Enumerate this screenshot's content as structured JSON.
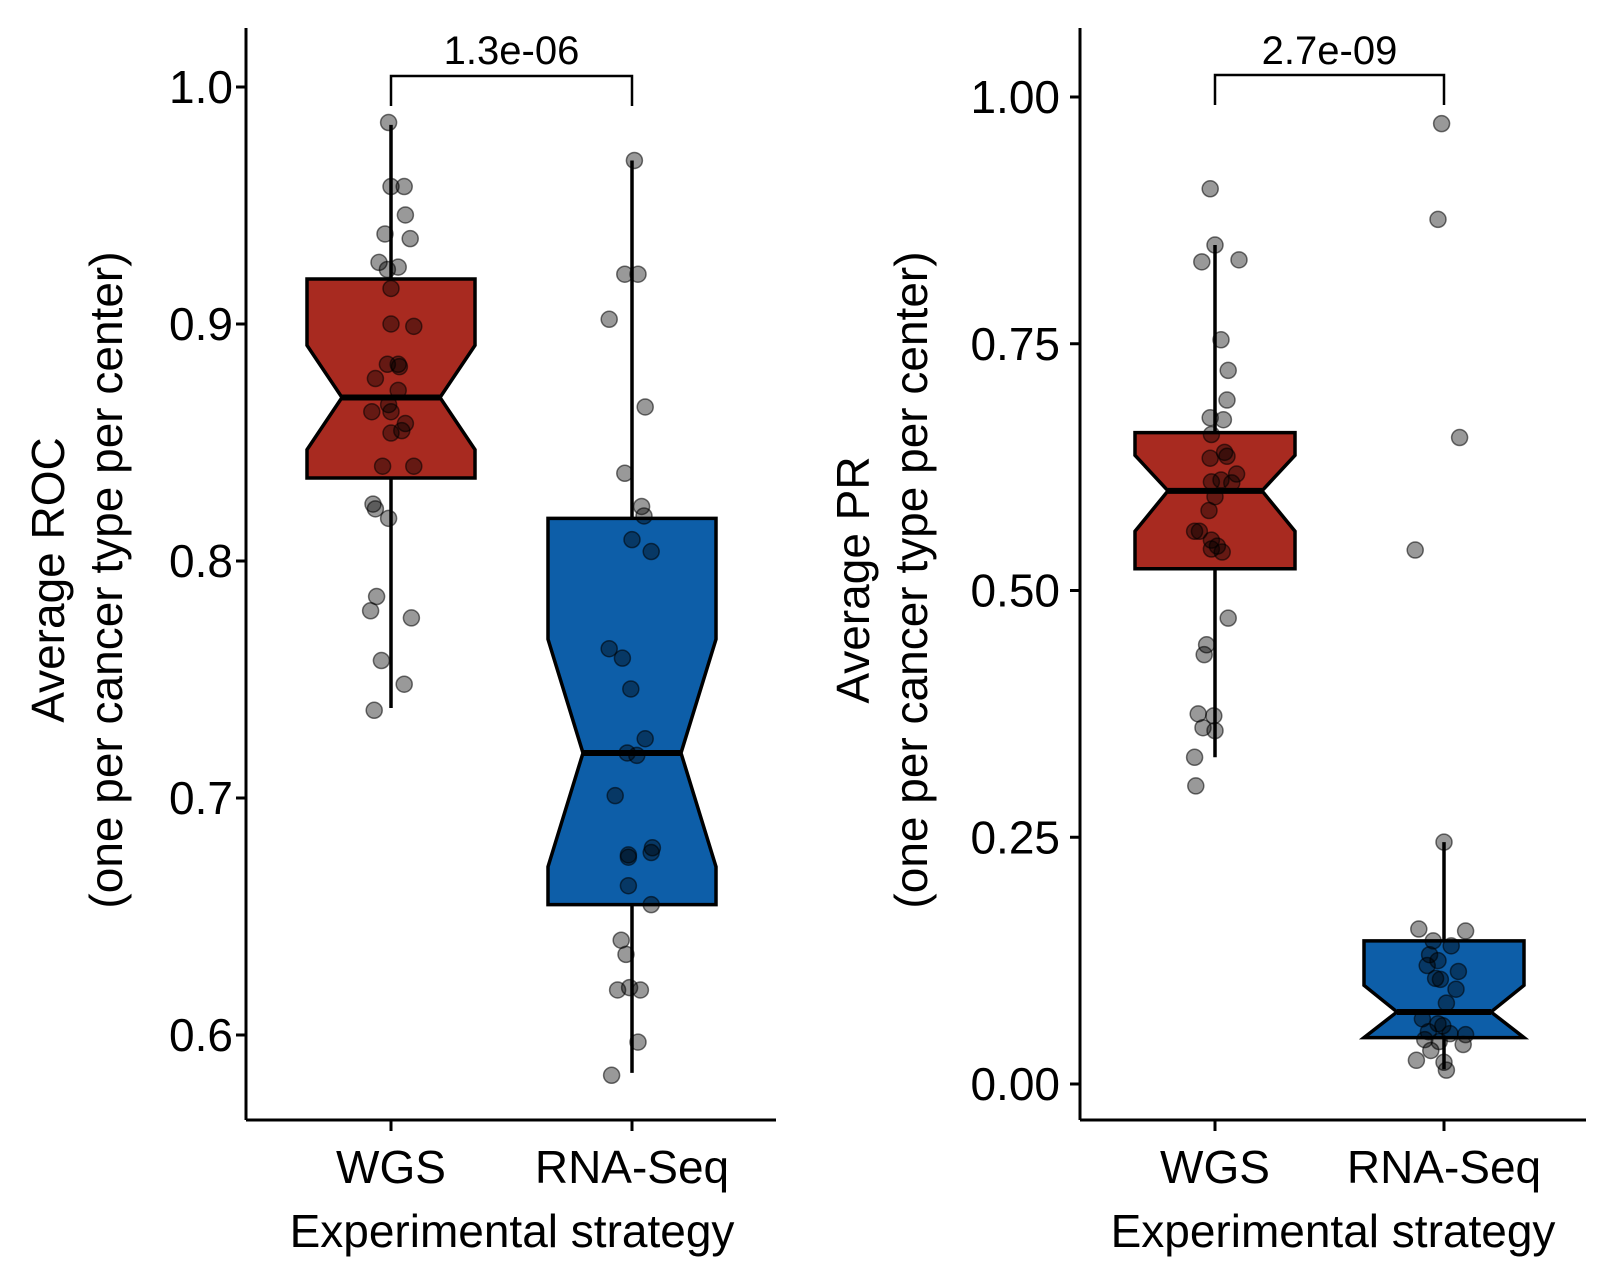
{
  "chart_data": [
    {
      "type": "boxplot",
      "xlabel": "Experimental strategy",
      "ylabel": "Average ROC",
      "ylabel2": "(one per cancer type per center)",
      "categories": [
        "WGS",
        "RNA-Seq"
      ],
      "yticks": [
        "0.6",
        "0.7",
        "0.8",
        "0.9",
        "1.0"
      ],
      "ytick_values": [
        0.6,
        0.7,
        0.8,
        0.9,
        1.0
      ],
      "ylim": [
        0.565,
        1.03
      ],
      "significance": "1.3e-06",
      "boxes": [
        {
          "category": "WGS",
          "color": "#a82a20",
          "q1": 0.835,
          "median": 0.869,
          "q3": 0.919,
          "whisker_low": 0.738,
          "whisker_high": 0.984,
          "notch_low": 0.847,
          "notch_high": 0.891
        },
        {
          "category": "RNA-Seq",
          "color": "#0d5ea8",
          "q1": 0.655,
          "median": 0.719,
          "q3": 0.818,
          "whisker_low": 0.584,
          "whisker_high": 0.969,
          "notch_low": 0.671,
          "notch_high": 0.767
        }
      ],
      "points": [
        [
          [
            -0.02,
            0.985
          ],
          [
            0.0,
            0.958
          ],
          [
            0.11,
            0.958
          ],
          [
            -0.05,
            0.938
          ],
          [
            0.12,
            0.946
          ],
          [
            0.16,
            0.936
          ],
          [
            -0.1,
            0.926
          ],
          [
            -0.03,
            0.923
          ],
          [
            0.06,
            0.924
          ],
          [
            0.0,
            0.915
          ],
          [
            0.0,
            0.9
          ],
          [
            0.19,
            0.899
          ],
          [
            -0.03,
            0.883
          ],
          [
            0.06,
            0.883
          ],
          [
            0.07,
            0.882
          ],
          [
            -0.13,
            0.877
          ],
          [
            0.06,
            0.872
          ],
          [
            -0.02,
            0.866
          ],
          [
            0.0,
            0.863
          ],
          [
            -0.16,
            0.863
          ],
          [
            0.12,
            0.858
          ],
          [
            0.09,
            0.855
          ],
          [
            0.0,
            0.854
          ],
          [
            -0.07,
            0.84
          ],
          [
            0.19,
            0.84
          ],
          [
            -0.15,
            0.824
          ],
          [
            -0.13,
            0.822
          ],
          [
            -0.02,
            0.818
          ],
          [
            -0.12,
            0.785
          ],
          [
            -0.17,
            0.779
          ],
          [
            0.17,
            0.776
          ],
          [
            -0.08,
            0.758
          ],
          [
            0.11,
            0.748
          ],
          [
            -0.14,
            0.737
          ]
        ],
        [
          [
            0.02,
            0.969
          ],
          [
            -0.06,
            0.921
          ],
          [
            0.05,
            0.921
          ],
          [
            -0.19,
            0.902
          ],
          [
            0.11,
            0.865
          ],
          [
            -0.06,
            0.837
          ],
          [
            0.08,
            0.823
          ],
          [
            0.1,
            0.819
          ],
          [
            0.0,
            0.809
          ],
          [
            0.16,
            0.804
          ],
          [
            -0.19,
            0.763
          ],
          [
            -0.08,
            0.759
          ],
          [
            -0.01,
            0.746
          ],
          [
            0.11,
            0.725
          ],
          [
            -0.04,
            0.719
          ],
          [
            0.04,
            0.718
          ],
          [
            -0.14,
            0.701
          ],
          [
            0.17,
            0.679
          ],
          [
            0.16,
            0.677
          ],
          [
            -0.03,
            0.676
          ],
          [
            -0.03,
            0.675
          ],
          [
            -0.03,
            0.663
          ],
          [
            0.16,
            0.655
          ],
          [
            -0.09,
            0.64
          ],
          [
            -0.05,
            0.634
          ],
          [
            -0.12,
            0.619
          ],
          [
            -0.02,
            0.62
          ],
          [
            0.07,
            0.619
          ],
          [
            0.05,
            0.597
          ],
          [
            -0.17,
            0.583
          ]
        ]
      ]
    },
    {
      "type": "boxplot",
      "xlabel": "Experimental strategy",
      "ylabel": "Average PR",
      "ylabel2": "(one per cancer type per center)",
      "categories": [
        "WGS",
        "RNA-Seq"
      ],
      "yticks": [
        "0.00",
        "0.25",
        "0.50",
        "0.75",
        "1.00"
      ],
      "ytick_values": [
        0.0,
        0.25,
        0.5,
        0.75,
        1.0
      ],
      "ylim": [
        -0.035,
        1.07
      ],
      "significance": "2.7e-09",
      "boxes": [
        {
          "category": "WGS",
          "color": "#a82a20",
          "q1": 0.522,
          "median": 0.601,
          "q3": 0.66,
          "whisker_low": 0.331,
          "whisker_high": 0.85,
          "notch_low": 0.56,
          "notch_high": 0.637
        },
        {
          "category": "RNA-Seq",
          "color": "#0d5ea8",
          "q1": 0.047,
          "median": 0.073,
          "q3": 0.145,
          "whisker_low": 0.015,
          "whisker_high": 0.245,
          "notch_low": 0.047,
          "notch_high": 0.1
        }
      ],
      "points": [
        [
          [
            -0.04,
            0.907
          ],
          [
            0.0,
            0.85
          ],
          [
            -0.11,
            0.833
          ],
          [
            0.2,
            0.835
          ],
          [
            0.05,
            0.754
          ],
          [
            0.11,
            0.723
          ],
          [
            0.1,
            0.693
          ],
          [
            -0.04,
            0.675
          ],
          [
            0.07,
            0.673
          ],
          [
            -0.03,
            0.658
          ],
          [
            0.08,
            0.64
          ],
          [
            -0.04,
            0.634
          ],
          [
            0.1,
            0.636
          ],
          [
            0.18,
            0.618
          ],
          [
            -0.03,
            0.61
          ],
          [
            0.05,
            0.612
          ],
          [
            0.14,
            0.609
          ],
          [
            0.0,
            0.595
          ],
          [
            -0.05,
            0.581
          ],
          [
            -0.17,
            0.56
          ],
          [
            -0.13,
            0.56
          ],
          [
            -0.03,
            0.551
          ],
          [
            0.02,
            0.545
          ],
          [
            -0.03,
            0.542
          ],
          [
            0.06,
            0.539
          ],
          [
            0.11,
            0.472
          ],
          [
            -0.07,
            0.445
          ],
          [
            -0.09,
            0.435
          ],
          [
            -0.14,
            0.375
          ],
          [
            -0.01,
            0.373
          ],
          [
            -0.1,
            0.361
          ],
          [
            0.0,
            0.358
          ],
          [
            -0.17,
            0.331
          ],
          [
            -0.16,
            0.302
          ]
        ],
        [
          [
            -0.02,
            0.973
          ],
          [
            -0.05,
            0.876
          ],
          [
            0.13,
            0.655
          ],
          [
            -0.24,
            0.541
          ],
          [
            0.0,
            0.245
          ],
          [
            -0.21,
            0.157
          ],
          [
            -0.09,
            0.145
          ],
          [
            0.18,
            0.155
          ],
          [
            0.06,
            0.14
          ],
          [
            -0.12,
            0.131
          ],
          [
            -0.05,
            0.125
          ],
          [
            -0.14,
            0.12
          ],
          [
            0.12,
            0.114
          ],
          [
            -0.07,
            0.107
          ],
          [
            -0.03,
            0.106
          ],
          [
            0.1,
            0.096
          ],
          [
            0.02,
            0.082
          ],
          [
            -0.18,
            0.066
          ],
          [
            -0.05,
            0.061
          ],
          [
            -0.01,
            0.059
          ],
          [
            -0.13,
            0.053
          ],
          [
            0.05,
            0.051
          ],
          [
            0.18,
            0.05
          ],
          [
            -0.16,
            0.045
          ],
          [
            -0.04,
            0.043
          ],
          [
            0.16,
            0.04
          ],
          [
            -0.11,
            0.034
          ],
          [
            0.0,
            0.022
          ],
          [
            -0.23,
            0.024
          ],
          [
            0.02,
            0.014
          ]
        ]
      ]
    }
  ]
}
